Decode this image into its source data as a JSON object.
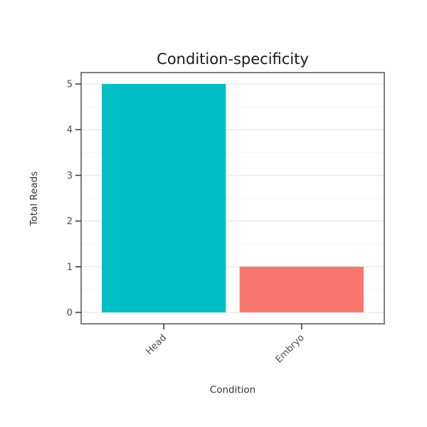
{
  "chart_data": {
    "type": "bar",
    "title": "Condition-specificity",
    "xlabel": "Condition",
    "ylabel": "Total Reads",
    "categories": [
      "Head",
      "Embryo"
    ],
    "values": [
      5,
      1
    ],
    "bar_colors": [
      "#00BFC4",
      "#F8766D"
    ],
    "ylim": [
      0,
      5
    ],
    "yticks": [
      0,
      1,
      2,
      3,
      4,
      5
    ],
    "x_tick_label_angle": 45,
    "legend": "none",
    "grid": "horizontal major and minor, light gray",
    "panel_border_color": "#7f7f7f",
    "gridline_major_color": "#ebebeb",
    "gridline_minor_color": "#f4f4f4",
    "tick_color": "#333333",
    "background_color": "#ffffff"
  }
}
